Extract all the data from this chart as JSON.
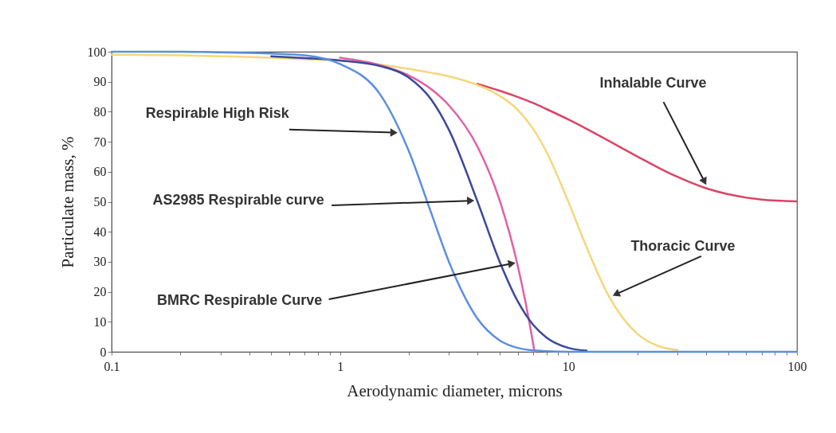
{
  "chart_data": {
    "type": "line",
    "xlabel": "Aerodynamic diameter, microns",
    "ylabel": "Particulate mass, %",
    "log": "x",
    "xlim": [
      0.1,
      100
    ],
    "ylim": [
      0,
      100
    ],
    "xticks": [
      0.1,
      {
        "value": 0.2,
        "label": null
      },
      {
        "value": 0.3,
        "label": null
      },
      {
        "value": 0.4,
        "label": null
      },
      {
        "value": 0.5,
        "label": null
      },
      {
        "value": 0.6,
        "label": null
      },
      {
        "value": 0.7,
        "label": null
      },
      {
        "value": 0.8,
        "label": null
      },
      {
        "value": 0.9,
        "label": null
      },
      1,
      {
        "value": 2,
        "label": null
      },
      {
        "value": 3,
        "label": null
      },
      {
        "value": 4,
        "label": null
      },
      {
        "value": 5,
        "label": null
      },
      {
        "value": 6,
        "label": null
      },
      {
        "value": 7,
        "label": null
      },
      {
        "value": 8,
        "label": null
      },
      {
        "value": 9,
        "label": null
      },
      10,
      {
        "value": 20,
        "label": null
      },
      {
        "value": 30,
        "label": null
      },
      {
        "value": 40,
        "label": null
      },
      {
        "value": 50,
        "label": null
      },
      {
        "value": 60,
        "label": null
      },
      {
        "value": 70,
        "label": null
      },
      {
        "value": 80,
        "label": null
      },
      {
        "value": 90,
        "label": null
      },
      100
    ],
    "yticks": [
      0,
      10,
      20,
      30,
      40,
      50,
      60,
      70,
      80,
      90,
      100
    ],
    "grid": false,
    "legend": false,
    "line_style": "solid",
    "marker": "none",
    "x": [
      0.1,
      0.2,
      0.3,
      0.5,
      0.7,
      1,
      1.5,
      2,
      2.5,
      3,
      4,
      5,
      6,
      7,
      8,
      10,
      12,
      15,
      20,
      25,
      30,
      40,
      50,
      70,
      100
    ],
    "series": [
      {
        "color": "#d94565",
        "x": [
          4,
          5,
          6,
          7,
          8,
          10,
          12,
          15,
          20,
          25,
          30,
          40,
          50,
          70,
          100
        ],
        "values": [
          89.3,
          87.0,
          84.9,
          82.9,
          80.9,
          77.4,
          74.3,
          70.3,
          65.1,
          61.2,
          58.3,
          54.5,
          52.5,
          50.7,
          50.1
        ]
      },
      {
        "color": "#f5d77a",
        "x": [
          0.1,
          0.2,
          0.3,
          0.5,
          0.7,
          1,
          1.5,
          2,
          2.5,
          3,
          4,
          5,
          6,
          7,
          8,
          10,
          12,
          15,
          20,
          25,
          30
        ],
        "values": [
          99.0,
          98.8,
          98.5,
          98.0,
          97.5,
          97.1,
          95.7,
          94.3,
          93.0,
          91.8,
          88.9,
          85.3,
          80.6,
          74.3,
          66.7,
          49.9,
          34.9,
          18.6,
          6.0,
          1.8,
          0.6
        ]
      },
      {
        "color": "#e060a8",
        "x": [
          1,
          1.5,
          2,
          2.5,
          3,
          4,
          5,
          6,
          6.5,
          7,
          7.1
        ],
        "values": [
          98.0,
          95.5,
          92.1,
          87.6,
          82.1,
          68.3,
          50.4,
          28.6,
          16.2,
          2.8,
          0
        ]
      },
      {
        "color": "#3a4a9a",
        "x": [
          0.5,
          0.7,
          1,
          1.5,
          2,
          2.5,
          3,
          4,
          5,
          6,
          7,
          8,
          10,
          12
        ],
        "values": [
          98.5,
          97.9,
          97.1,
          95.2,
          91.4,
          84.2,
          73.9,
          50.0,
          30.0,
          16.8,
          9.0,
          4.8,
          1.3,
          0.4
        ]
      },
      {
        "color": "#5b8fe0",
        "values": [
          100,
          100,
          99.8,
          99.4,
          98.8,
          95.9,
          85.7,
          66.9,
          46.5,
          29.9,
          11.0,
          3.8,
          1.3,
          0.5,
          0.2,
          0,
          0,
          0,
          0,
          0,
          0,
          0,
          0,
          0,
          0
        ]
      }
    ],
    "annotations": [
      {
        "text": "Respirable High Risk",
        "x": 1.8,
        "y": 73
      },
      {
        "text": "AS2985 Respirable curve",
        "x": 3.9,
        "y": 50.4
      },
      {
        "text": "BMRC Respirable Curve",
        "x": 5.9,
        "y": 29.7
      },
      {
        "text": "Inhalable Curve",
        "x": 40.2,
        "y": 55.4
      },
      {
        "text": "Thoracic Curve",
        "x": 15.5,
        "y": 18.6
      }
    ]
  }
}
